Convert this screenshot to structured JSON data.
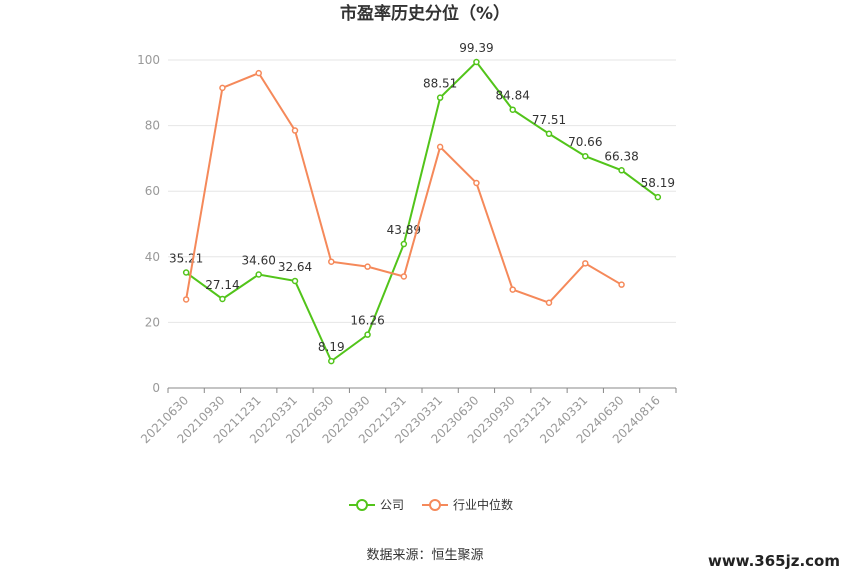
{
  "chart_data": {
    "type": "line",
    "title": "市盈率历史分位（%）",
    "categories": [
      "20210630",
      "20210930",
      "20211231",
      "20220331",
      "20220630",
      "20220930",
      "20221231",
      "20230331",
      "20230630",
      "20230930",
      "20231231",
      "20240331",
      "20240630",
      "20240816"
    ],
    "ylim": [
      0,
      100
    ],
    "yticks": [
      0,
      20,
      40,
      60,
      80,
      100
    ],
    "grid": true,
    "legend_position": "bottom",
    "series": [
      {
        "name": "公司",
        "color": "#52c41a",
        "values": [
          35.21,
          27.14,
          34.6,
          32.64,
          8.19,
          16.26,
          43.89,
          88.51,
          99.39,
          84.84,
          77.51,
          70.66,
          66.38,
          58.19
        ],
        "labels": [
          "35.21",
          "27.14",
          "34.60",
          "32.64",
          "8.19",
          "16.26",
          "43.89",
          "88.51",
          "99.39",
          "84.84",
          "77.51",
          "70.66",
          "66.38",
          "58.19"
        ]
      },
      {
        "name": "行业中位数",
        "color": "#f5895a",
        "values": [
          27,
          91.5,
          96,
          78.5,
          38.5,
          37,
          34,
          73.5,
          62.5,
          30,
          26,
          38,
          31.5,
          null
        ]
      }
    ]
  },
  "source_text": "数据来源：恒生聚源",
  "watermark": "www.365jz.com"
}
